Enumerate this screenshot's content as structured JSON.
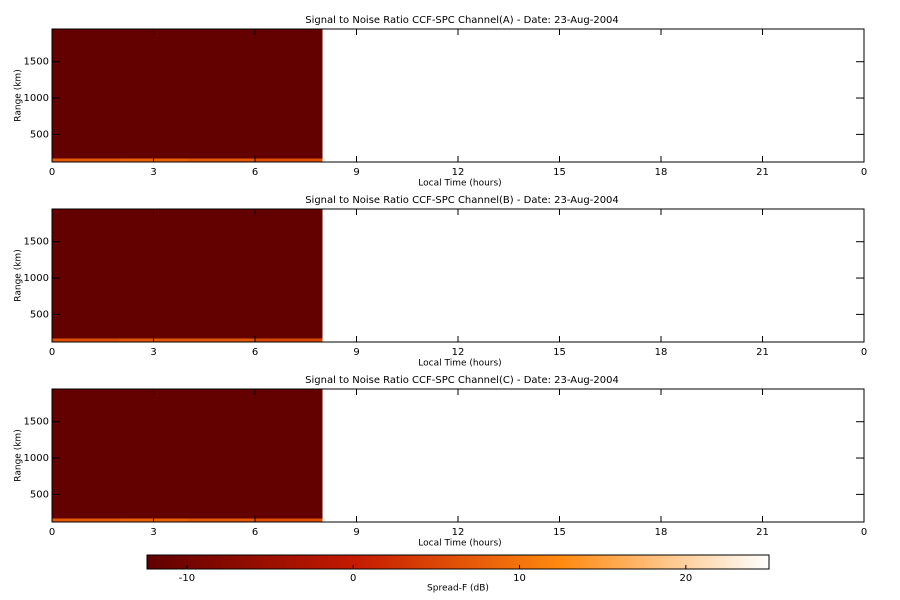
{
  "chart_data": [
    {
      "type": "heatmap",
      "title": "Signal to Noise Ratio CCF-SPC Channel(A) - Date: 23-Aug-2004",
      "xlabel": "Local Time (hours)",
      "ylabel": "Range (km)",
      "xlim": [
        0,
        24
      ],
      "xticks": [
        0,
        3,
        6,
        9,
        12,
        15,
        18,
        21,
        {
          "value": 24,
          "label": "0"
        }
      ],
      "ylim": [
        120,
        1950
      ],
      "yticks": [
        500,
        1000,
        1500
      ],
      "x_edges": [
        0,
        2,
        4,
        6,
        8
      ],
      "y_edges": [
        120,
        165,
        1950
      ],
      "z": [
        [
          7,
          8,
          7,
          6
        ],
        [
          -12,
          -12,
          -12,
          -12
        ]
      ]
    },
    {
      "type": "heatmap",
      "title": "Signal to Noise Ratio CCF-SPC Channel(B) - Date: 23-Aug-2004",
      "xlabel": "Local Time (hours)",
      "ylabel": "Range (km)",
      "xlim": [
        0,
        24
      ],
      "xticks": [
        0,
        3,
        6,
        9,
        12,
        15,
        18,
        21,
        {
          "value": 24,
          "label": "0"
        }
      ],
      "ylim": [
        120,
        1950
      ],
      "yticks": [
        500,
        1000,
        1500
      ],
      "x_edges": [
        0,
        2,
        4,
        6,
        8
      ],
      "y_edges": [
        120,
        165,
        1950
      ],
      "z": [
        [
          6,
          7,
          7,
          5
        ],
        [
          -12,
          -12,
          -12,
          -12
        ]
      ]
    },
    {
      "type": "heatmap",
      "title": "Signal to Noise Ratio CCF-SPC Channel(C) - Date: 23-Aug-2004",
      "xlabel": "Local Time (hours)",
      "ylabel": "Range (km)",
      "xlim": [
        0,
        24
      ],
      "xticks": [
        0,
        3,
        6,
        9,
        12,
        15,
        18,
        21,
        {
          "value": 24,
          "label": "0"
        }
      ],
      "ylim": [
        120,
        1950
      ],
      "yticks": [
        500,
        1000,
        1500
      ],
      "x_edges": [
        0,
        2,
        4,
        6,
        8
      ],
      "y_edges": [
        120,
        165,
        1950
      ],
      "z": [
        [
          7,
          8,
          7,
          6
        ],
        [
          -12,
          -12,
          -12,
          -12
        ]
      ]
    }
  ],
  "colorbar": {
    "label": "Spread-F (dB)",
    "clim": [
      -12.4,
      25
    ],
    "ticks": [
      -10,
      0,
      10,
      20
    ],
    "colormap": [
      "#600000",
      "#c41a00",
      "#ff8a10",
      "#ffffff"
    ]
  }
}
